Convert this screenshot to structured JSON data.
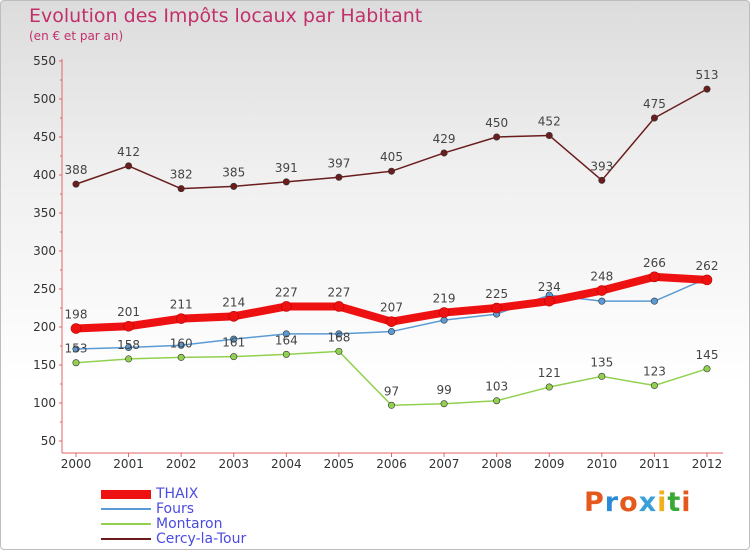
{
  "header": {
    "title": "Evolution des Impôts locaux par Habitant",
    "subtitle": "(en € et par an)"
  },
  "brand": {
    "logo_text": "Proxiti",
    "logo_colors": [
      "#e5591f",
      "#2a8ad8",
      "#e5591f",
      "#3aa0d9",
      "#f1b11c",
      "#39a935",
      "#e5591f"
    ]
  },
  "chart_data": {
    "type": "line",
    "x": [
      2000,
      2001,
      2002,
      2003,
      2004,
      2005,
      2006,
      2007,
      2008,
      2009,
      2010,
      2011,
      2012
    ],
    "xlim": [
      2000,
      2012
    ],
    "ylim": [
      50,
      550
    ],
    "yticks": [
      50,
      100,
      150,
      200,
      250,
      300,
      350,
      400,
      450,
      500,
      550
    ],
    "grid": false,
    "legend_position": "bottom-left",
    "series": [
      {
        "name": "THAIX",
        "color": "#ee1111",
        "thick": true,
        "values": [
          198,
          201,
          211,
          214,
          227,
          227,
          207,
          219,
          225,
          234,
          248,
          266,
          262
        ]
      },
      {
        "name": "Fours",
        "color": "#5b9bd5",
        "thick": false,
        "labels_shown": false,
        "values": [
          171,
          173,
          176,
          184,
          191,
          191,
          194,
          209,
          217,
          242,
          234,
          234,
          264
        ]
      },
      {
        "name": "Montaron",
        "color": "#92d050",
        "thick": false,
        "values": [
          153,
          158,
          160,
          161,
          164,
          168,
          97,
          99,
          103,
          121,
          135,
          123,
          145
        ]
      },
      {
        "name": "Cercy-la-Tour",
        "color": "#6b1d1d",
        "thick": false,
        "values": [
          388,
          412,
          382,
          385,
          391,
          397,
          405,
          429,
          450,
          452,
          393,
          475,
          513
        ]
      }
    ]
  }
}
